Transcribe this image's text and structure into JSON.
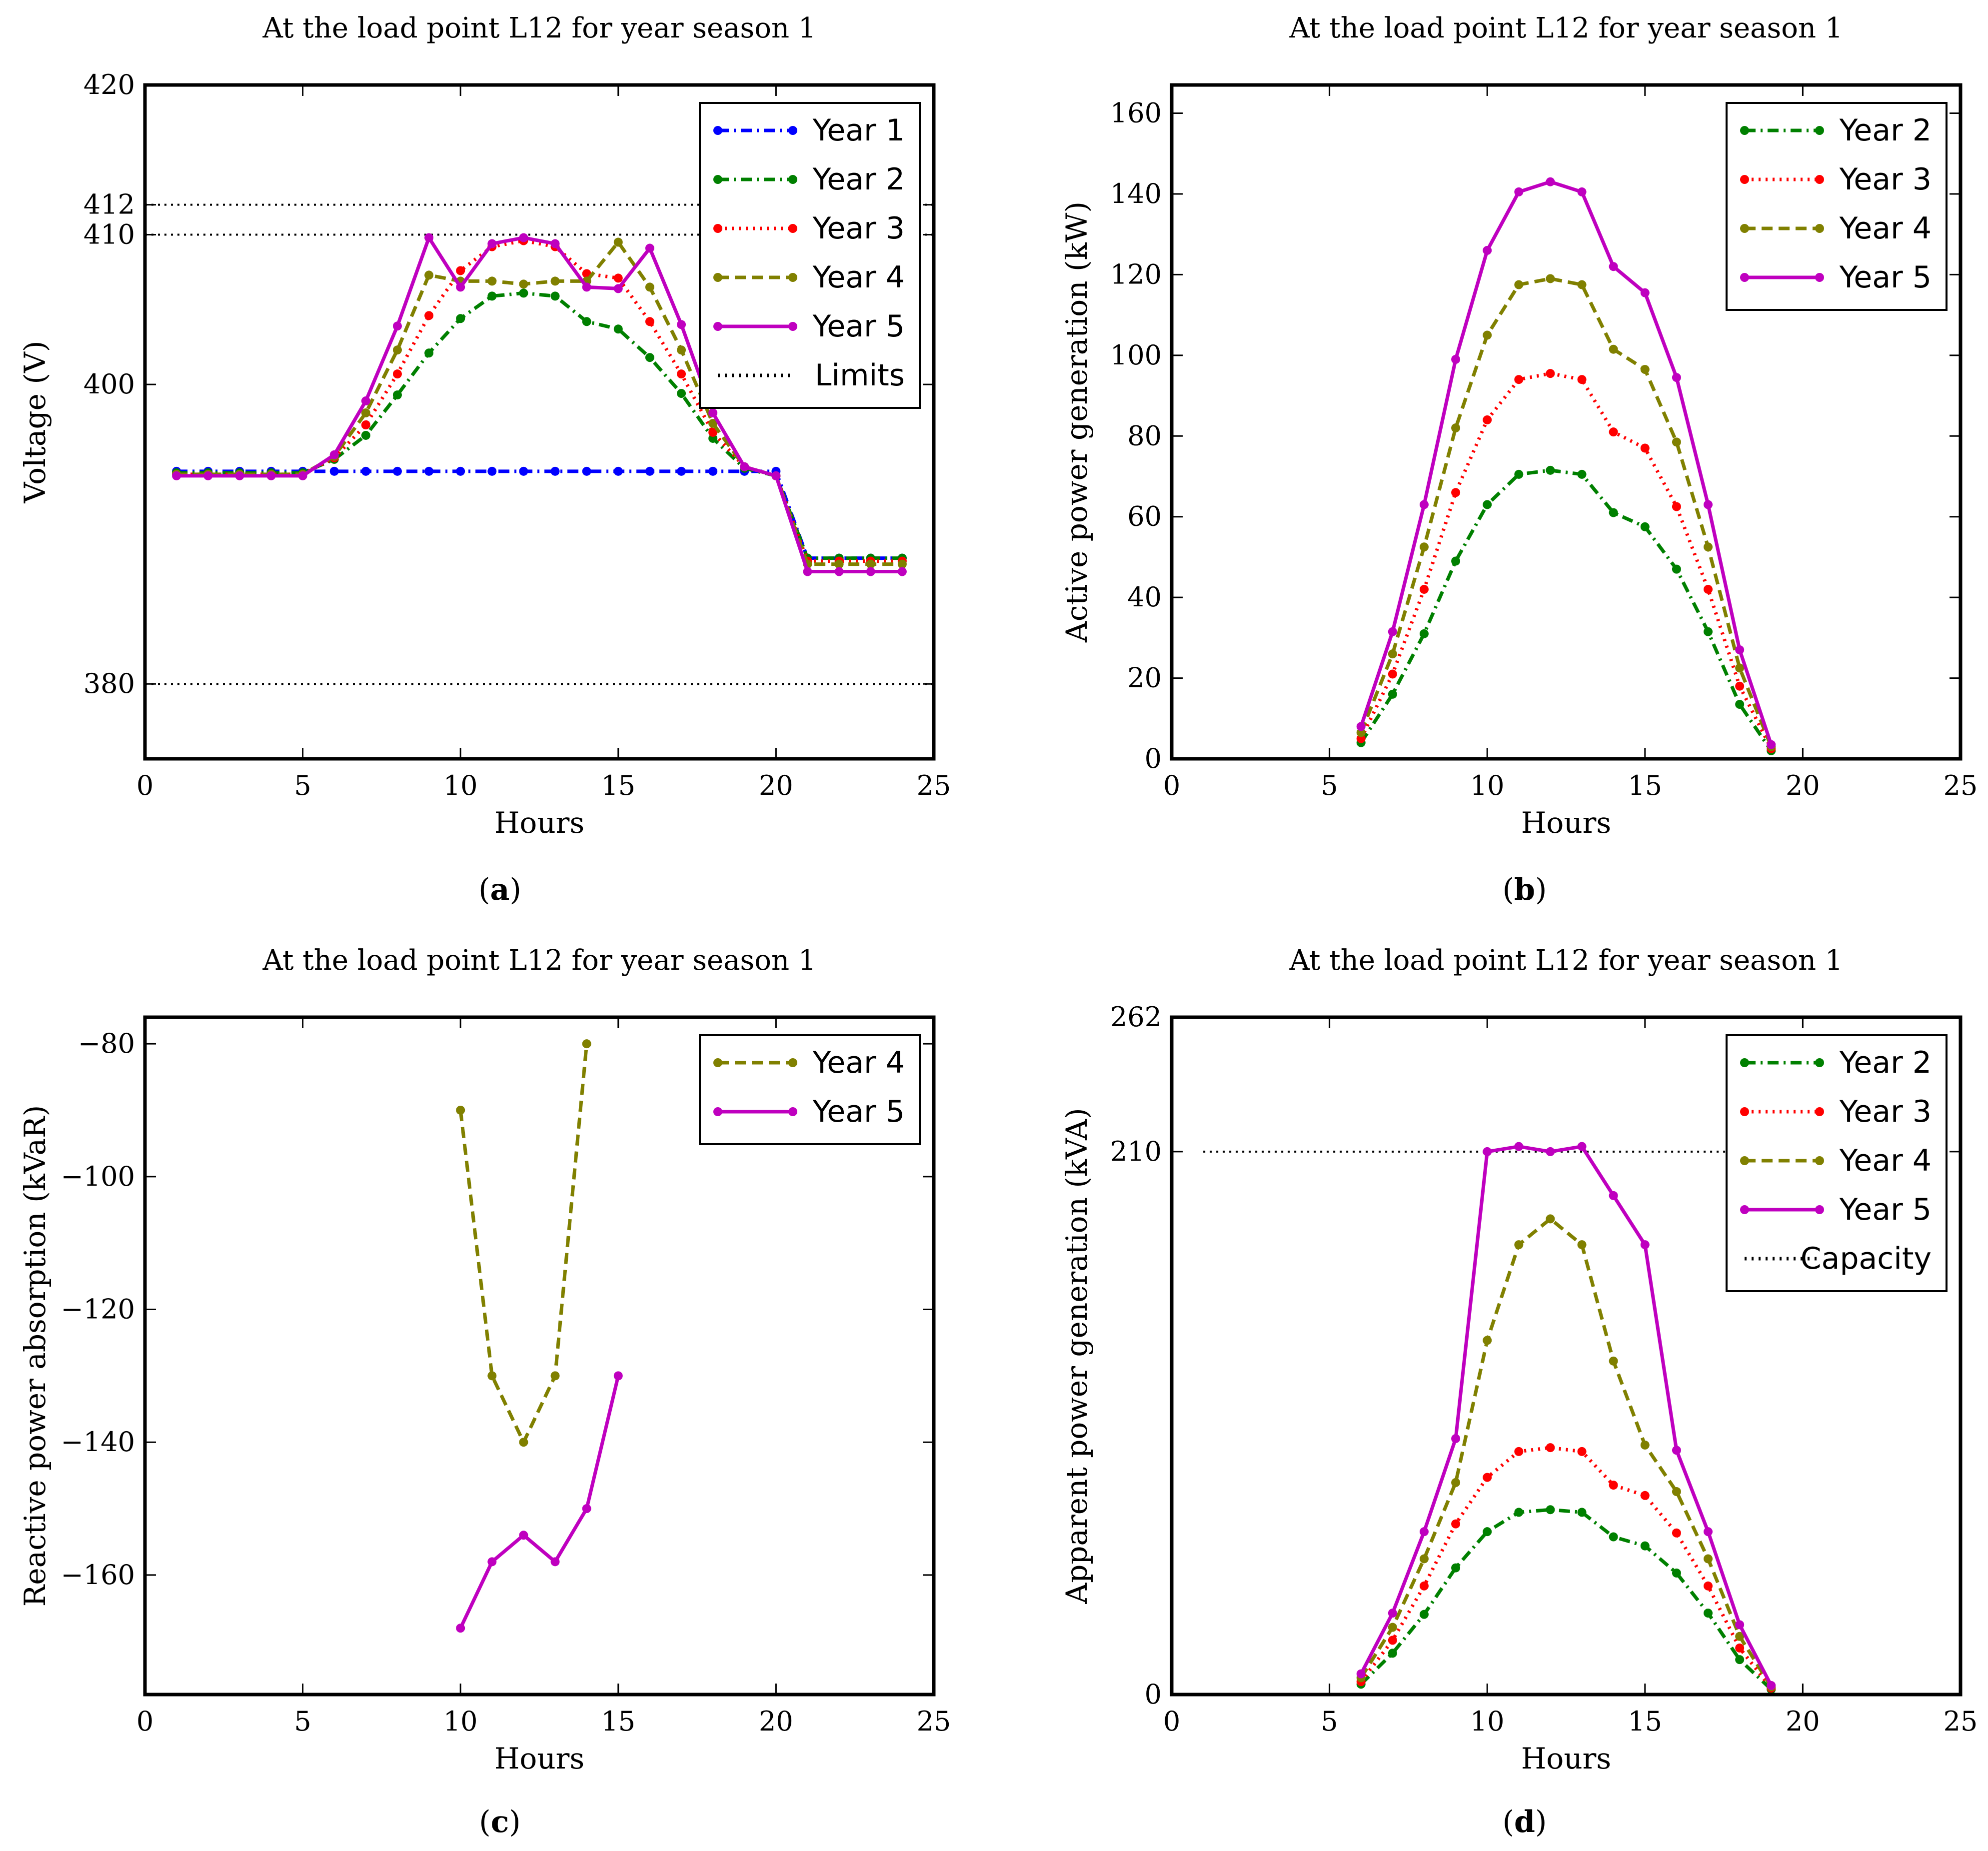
{
  "chart_data": [
    {
      "id": "a",
      "type": "line",
      "title": "At the load point L12 for year season 1",
      "caption": "a",
      "xlabel": "Hours",
      "ylabel": "Voltage (V)",
      "xlim": [
        0,
        25
      ],
      "ylim": [
        375,
        420
      ],
      "xticks": [
        0,
        5,
        10,
        15,
        20,
        25
      ],
      "yticks": [
        380,
        400,
        410,
        412,
        420
      ],
      "legend_position": "top-right",
      "hlines": [
        {
          "name": "Limits",
          "y": 412,
          "x": [
            0,
            25
          ]
        },
        {
          "name": "Limits",
          "y": 410,
          "x": [
            0,
            25
          ]
        },
        {
          "name": "Limits",
          "y": 380,
          "x": [
            0,
            25
          ]
        }
      ],
      "legend": [
        "Year 1",
        "Year 2",
        "Year 3",
        "Year 4",
        "Year 5",
        "Limits"
      ],
      "series": [
        {
          "name": "Year 1",
          "color": "#0000ff",
          "style": "dashdot",
          "x": [
            1,
            2,
            3,
            4,
            5,
            6,
            7,
            8,
            9,
            10,
            11,
            12,
            13,
            14,
            15,
            16,
            17,
            18,
            19,
            20,
            21,
            22,
            23,
            24
          ],
          "values": [
            394.2,
            394.2,
            394.2,
            394.2,
            394.2,
            394.2,
            394.2,
            394.2,
            394.2,
            394.2,
            394.2,
            394.2,
            394.2,
            394.2,
            394.2,
            394.2,
            394.2,
            394.2,
            394.2,
            394.2,
            388.4,
            388.4,
            388.4,
            388.4
          ]
        },
        {
          "name": "Year 2",
          "color": "#008000",
          "style": "dashdot",
          "x": [
            1,
            2,
            3,
            4,
            5,
            6,
            7,
            8,
            9,
            10,
            11,
            12,
            13,
            14,
            15,
            16,
            17,
            18,
            19,
            20,
            21,
            22,
            23,
            24
          ],
          "values": [
            394.1,
            394.1,
            394.1,
            394.1,
            394.1,
            395,
            396.6,
            399.3,
            402.1,
            404.4,
            405.9,
            406.1,
            405.9,
            404.2,
            403.7,
            401.8,
            399.4,
            396.4,
            394.4,
            393.9,
            388.4,
            388.4,
            388.4,
            388.4
          ]
        },
        {
          "name": "Year 3",
          "color": "#ff0000",
          "style": "dotted",
          "x": [
            1,
            2,
            3,
            4,
            5,
            6,
            7,
            8,
            9,
            10,
            11,
            12,
            13,
            14,
            15,
            16,
            17,
            18,
            19,
            20,
            21,
            22,
            23,
            24
          ],
          "values": [
            394,
            394,
            394,
            394,
            394,
            395.1,
            397.3,
            400.7,
            404.6,
            407.6,
            409.2,
            409.6,
            409.2,
            407.4,
            407.1,
            404.2,
            400.7,
            396.8,
            394.5,
            393.9,
            388.2,
            388.2,
            388.2,
            388.2
          ]
        },
        {
          "name": "Year 4",
          "color": "#808000",
          "style": "dashed",
          "x": [
            1,
            2,
            3,
            4,
            5,
            6,
            7,
            8,
            9,
            10,
            11,
            12,
            13,
            14,
            15,
            16,
            17,
            18,
            19,
            20,
            21,
            22,
            23,
            24
          ],
          "values": [
            394,
            394,
            394,
            394,
            394,
            395.2,
            398.1,
            402.3,
            407.3,
            406.9,
            406.9,
            406.7,
            406.9,
            406.9,
            409.5,
            406.5,
            402.3,
            397.4,
            394.5,
            393.9,
            388,
            388,
            388,
            388
          ]
        },
        {
          "name": "Year 5",
          "color": "#bf00bf",
          "style": "solid",
          "x": [
            1,
            2,
            3,
            4,
            5,
            6,
            7,
            8,
            9,
            10,
            11,
            12,
            13,
            14,
            15,
            16,
            17,
            18,
            19,
            20,
            21,
            22,
            23,
            24
          ],
          "values": [
            393.9,
            393.9,
            393.9,
            393.9,
            393.9,
            395.3,
            398.9,
            403.9,
            409.8,
            406.5,
            409.4,
            409.8,
            409.4,
            406.5,
            406.4,
            409.1,
            404,
            398.1,
            394.5,
            393.9,
            387.5,
            387.5,
            387.5,
            387.5
          ]
        }
      ]
    },
    {
      "id": "b",
      "type": "line",
      "title": "At the load point L12 for year season 1",
      "caption": "b",
      "xlabel": "Hours",
      "ylabel": "Active power generation (kW)",
      "xlim": [
        0,
        25
      ],
      "ylim": [
        0,
        167
      ],
      "xticks": [
        0,
        5,
        10,
        15,
        20,
        25
      ],
      "yticks": [
        0,
        20,
        40,
        60,
        80,
        100,
        120,
        140,
        160
      ],
      "legend_position": "top-right",
      "legend": [
        "Year 2",
        "Year 3",
        "Year 4",
        "Year 5"
      ],
      "series": [
        {
          "name": "Year 2",
          "color": "#008000",
          "style": "dashdot",
          "x": [
            6,
            7,
            8,
            9,
            10,
            11,
            12,
            13,
            14,
            15,
            16,
            17,
            18,
            19
          ],
          "values": [
            4,
            16,
            31,
            49,
            63,
            70.5,
            71.5,
            70.5,
            61,
            57.5,
            47,
            31.5,
            13.5,
            2
          ]
        },
        {
          "name": "Year 3",
          "color": "#ff0000",
          "style": "dotted",
          "x": [
            6,
            7,
            8,
            9,
            10,
            11,
            12,
            13,
            14,
            15,
            16,
            17,
            18,
            19
          ],
          "values": [
            5,
            21,
            42,
            66,
            84,
            94,
            95.5,
            94,
            81,
            77,
            62.5,
            42,
            18,
            2.5
          ]
        },
        {
          "name": "Year 4",
          "color": "#808000",
          "style": "dashed",
          "x": [
            6,
            7,
            8,
            9,
            10,
            11,
            12,
            13,
            14,
            15,
            16,
            17,
            18,
            19
          ],
          "values": [
            6.5,
            26,
            52.5,
            82,
            105,
            117.5,
            119,
            117.5,
            101.5,
            96.5,
            78.5,
            52.5,
            22.5,
            3
          ]
        },
        {
          "name": "Year 5",
          "color": "#bf00bf",
          "style": "solid",
          "x": [
            6,
            7,
            8,
            9,
            10,
            11,
            12,
            13,
            14,
            15,
            16,
            17,
            18,
            19
          ],
          "values": [
            8,
            31.5,
            63,
            99,
            126,
            140.5,
            143,
            140.5,
            122,
            115.5,
            94.5,
            63,
            27,
            3.5
          ]
        }
      ]
    },
    {
      "id": "c",
      "type": "line",
      "title": "At the load point L12 for year season 1",
      "caption": "c",
      "xlabel": "Hours",
      "ylabel": "Reactive power absorption (kVaR)",
      "xlim": [
        0,
        25
      ],
      "ylim": [
        -178,
        -76
      ],
      "xticks": [
        0,
        5,
        10,
        15,
        20,
        25
      ],
      "yticks": [
        -80,
        -100,
        -120,
        -140,
        -160
      ],
      "legend_position": "top-right",
      "legend": [
        "Year 4",
        "Year 5"
      ],
      "series": [
        {
          "name": "Year 4",
          "color": "#808000",
          "style": "dashed",
          "x": [
            10,
            11,
            12,
            13,
            14
          ],
          "values": [
            -90,
            -130,
            -140,
            -130,
            -80
          ]
        },
        {
          "name": "Year 5",
          "color": "#bf00bf",
          "style": "solid",
          "x": [
            10,
            11,
            12,
            13,
            14,
            15
          ],
          "values": [
            -168,
            -158,
            -154,
            -158,
            -150,
            -130
          ]
        }
      ]
    },
    {
      "id": "d",
      "type": "line",
      "title": "At the load point L12 for year season 1",
      "caption": "d",
      "xlabel": "Hours",
      "ylabel": "Apparent power generation (kVA)",
      "xlim": [
        0,
        25
      ],
      "ylim": [
        0,
        262
      ],
      "xticks": [
        0,
        5,
        10,
        15,
        20,
        25
      ],
      "yticks": [
        0,
        210,
        262
      ],
      "legend_position": "top-right",
      "hlines": [
        {
          "name": "Capacity",
          "y": 210,
          "x": [
            1,
            24
          ]
        }
      ],
      "legend": [
        "Year 2",
        "Year 3",
        "Year 4",
        "Year 5",
        "Capacity"
      ],
      "series": [
        {
          "name": "Year 2",
          "color": "#008000",
          "style": "dashdot",
          "x": [
            6,
            7,
            8,
            9,
            10,
            11,
            12,
            13,
            14,
            15,
            16,
            17,
            18,
            19
          ],
          "values": [
            4,
            16,
            31,
            49,
            63,
            70.5,
            71.5,
            70.5,
            61,
            57.5,
            47,
            31.5,
            13.5,
            2
          ]
        },
        {
          "name": "Year 3",
          "color": "#ff0000",
          "style": "dotted",
          "x": [
            6,
            7,
            8,
            9,
            10,
            11,
            12,
            13,
            14,
            15,
            16,
            17,
            18,
            19
          ],
          "values": [
            5,
            21,
            42,
            66,
            84,
            94,
            95.5,
            94,
            81,
            77,
            62.5,
            42,
            18,
            2.5
          ]
        },
        {
          "name": "Year 4",
          "color": "#808000",
          "style": "dashed",
          "x": [
            6,
            7,
            8,
            9,
            10,
            11,
            12,
            13,
            14,
            15,
            16,
            17,
            18,
            19
          ],
          "values": [
            6.5,
            26,
            52.5,
            82,
            137,
            174,
            184,
            174,
            129,
            96.5,
            78.5,
            52.5,
            22.5,
            3
          ]
        },
        {
          "name": "Year 5",
          "color": "#bf00bf",
          "style": "solid",
          "x": [
            6,
            7,
            8,
            9,
            10,
            11,
            12,
            13,
            14,
            15,
            16,
            17,
            18,
            19
          ],
          "values": [
            8,
            31.5,
            63,
            99,
            210,
            212,
            210,
            212,
            193,
            174,
            94.5,
            63,
            27,
            3.5
          ]
        }
      ]
    }
  ]
}
